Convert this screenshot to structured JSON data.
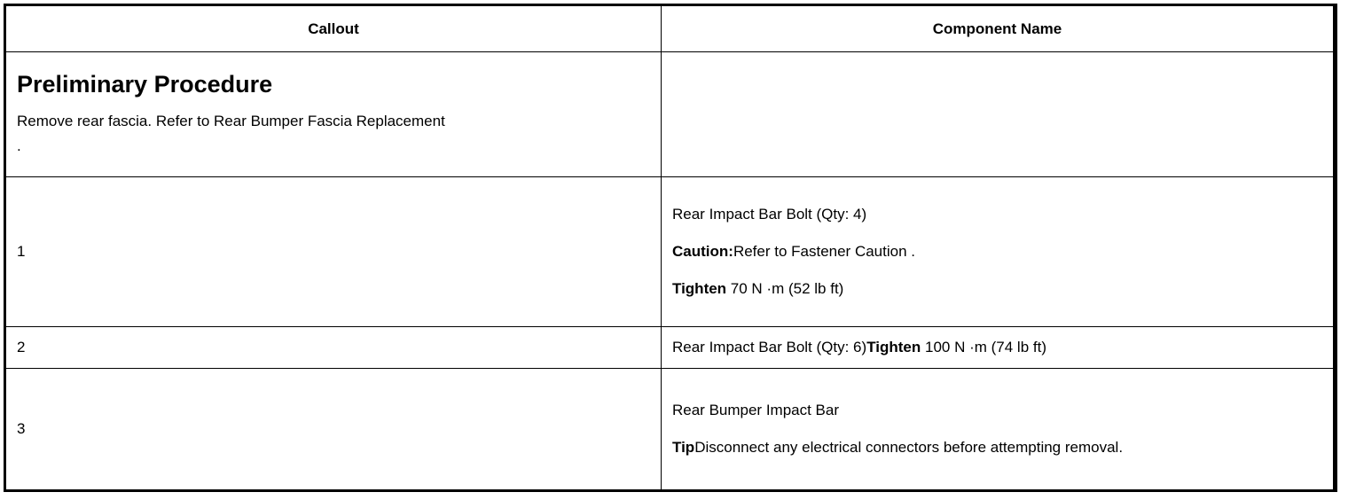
{
  "table": {
    "headers": [
      "Callout",
      "Component Name"
    ],
    "preliminary": {
      "title": "Preliminary Procedure",
      "text": "Remove rear fascia. Refer to Rear Bumper Fascia Replacement",
      "trailing": "."
    },
    "rows": [
      {
        "callout": "1",
        "name": "Rear Impact Bar Bolt (Qty: 4)",
        "caution_label": "Caution:",
        "caution_text": "Refer to Fastener Caution .",
        "tighten_label": "Tighten",
        "tighten_text": " 70 N ·m (52 lb ft)"
      },
      {
        "callout": "2",
        "name": "Rear Impact Bar Bolt (Qty: 6)",
        "tighten_label": "Tighten",
        "tighten_text": " 100 N ·m (74 lb ft)"
      },
      {
        "callout": "3",
        "name": "Rear Bumper Impact Bar",
        "tip_label": "Tip",
        "tip_text": "Disconnect any electrical connectors before attempting removal."
      }
    ]
  }
}
